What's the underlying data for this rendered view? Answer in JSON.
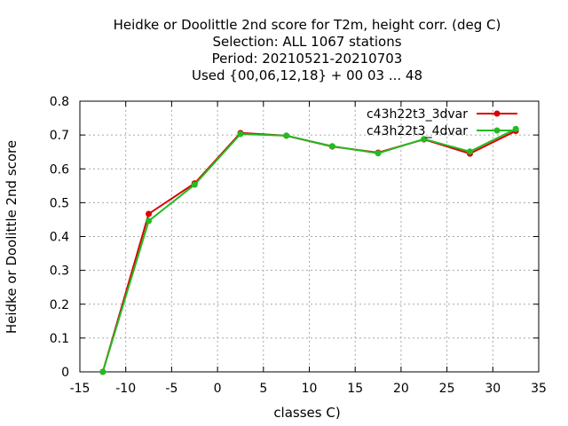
{
  "chart_data": {
    "type": "line",
    "title_lines": [
      "Heidke or Doolittle 2nd score  for T2m, height corr. (deg C)",
      "Selection: ALL   1067 stations",
      "Period: 20210521-20210703",
      "Used {00,06,12,18} + 00 03 ... 48"
    ],
    "xlabel": "classes C)",
    "ylabel": "Heidke or Doolittle 2nd score",
    "xlim": [
      -15,
      35
    ],
    "ylim": [
      0,
      0.8
    ],
    "xticks": [
      -15,
      -10,
      -5,
      0,
      5,
      10,
      15,
      20,
      25,
      30,
      35
    ],
    "xtick_labels": [
      "-15",
      "-10",
      "-5",
      "0",
      "5",
      "10",
      "15",
      "20",
      "25",
      "30",
      "35"
    ],
    "yticks": [
      0,
      0.1,
      0.2,
      0.3,
      0.4,
      0.5,
      0.6,
      0.7,
      0.8
    ],
    "ytick_labels": [
      "0",
      "0.1",
      "0.2",
      "0.3",
      "0.4",
      "0.5",
      "0.6",
      "0.7",
      "0.8"
    ],
    "grid": true,
    "legend_position": "top-right",
    "x": [
      -12.5,
      -7.5,
      -2.5,
      2.5,
      7.5,
      12.5,
      17.5,
      22.5,
      27.5,
      32.5
    ],
    "series": [
      {
        "name": "c43h22t3_3dvar",
        "color": "#dd0000",
        "values": [
          0.0,
          0.467,
          0.557,
          0.706,
          0.698,
          0.666,
          0.648,
          0.687,
          0.645,
          0.712
        ]
      },
      {
        "name": "c43h22t3_4dvar",
        "color": "#22bb22",
        "values": [
          0.0,
          0.446,
          0.553,
          0.703,
          0.698,
          0.667,
          0.646,
          0.688,
          0.651,
          0.718
        ]
      }
    ]
  }
}
